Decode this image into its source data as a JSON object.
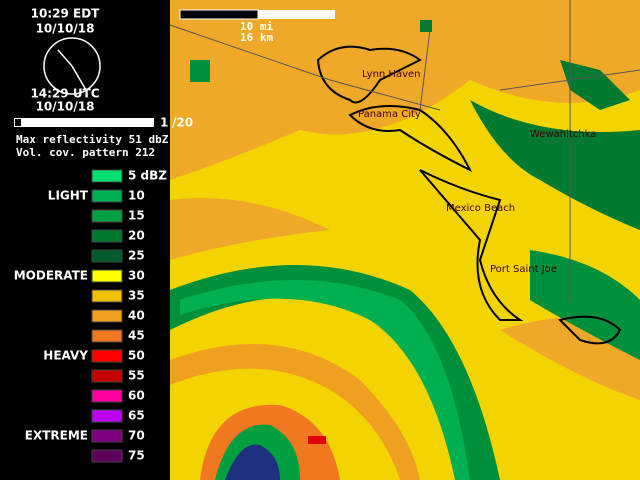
{
  "header": {
    "local_time": "10:29 EDT",
    "local_date": "10/10/18",
    "utc_time": "14:29 UTC",
    "utc_date": "10/10/18",
    "frame": "1",
    "frame_total": "/20",
    "max_reflectivity": "Max reflectivity 51 dbZ",
    "vcp": "Vol. cov. pattern 212"
  },
  "legend": [
    {
      "label": "5 dBZ",
      "color": "#00e070"
    },
    {
      "label": "10",
      "color": "#00b050",
      "category": "LIGHT"
    },
    {
      "label": "15",
      "color": "#00a040"
    },
    {
      "label": "20",
      "color": "#007a30"
    },
    {
      "label": "25",
      "color": "#005c28"
    },
    {
      "label": "30",
      "color": "#ffff00",
      "category": "MODERATE"
    },
    {
      "label": "35",
      "color": "#f0c000"
    },
    {
      "label": "40",
      "color": "#f0a020"
    },
    {
      "label": "45",
      "color": "#f07820"
    },
    {
      "label": "50",
      "color": "#ff0000",
      "category": "HEAVY"
    },
    {
      "label": "55",
      "color": "#c00000"
    },
    {
      "label": "60",
      "color": "#ff00a0"
    },
    {
      "label": "65",
      "color": "#c000ff"
    },
    {
      "label": "70",
      "color": "#800080",
      "category": "EXTREME"
    },
    {
      "label": "75",
      "color": "#600060"
    }
  ],
  "map": {
    "scale_miles": "10 mi",
    "scale_km": "16 km",
    "places": [
      {
        "name": "Lynn Haven"
      },
      {
        "name": "Panama City"
      },
      {
        "name": "Wewahitchka"
      },
      {
        "name": "Mexico Beach"
      },
      {
        "name": "Port Saint Joe"
      }
    ]
  }
}
